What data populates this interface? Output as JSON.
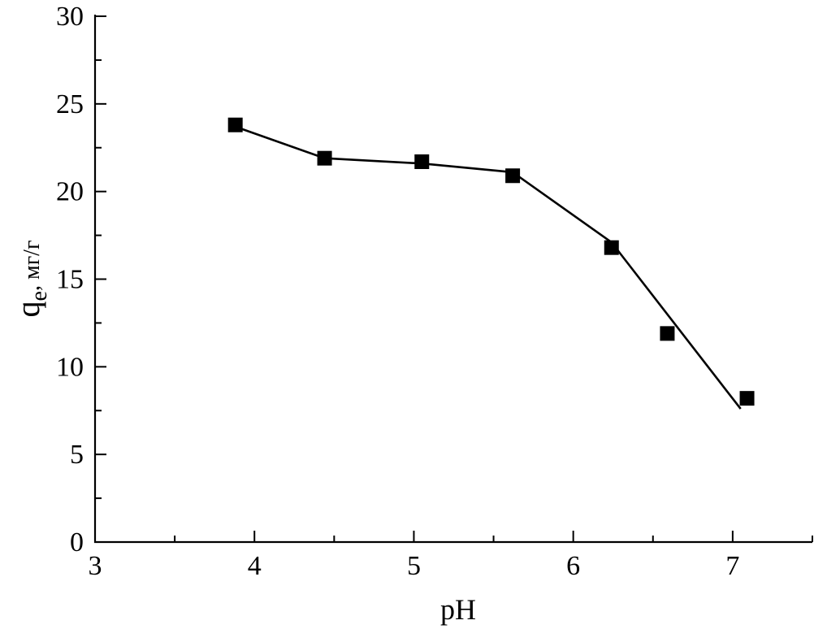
{
  "chart_data": {
    "type": "scatter",
    "xlabel": "pH",
    "ylabel": {
      "main": "q",
      "subscript": "e",
      "unit": ", мг/г"
    },
    "xlim": [
      3,
      7.5
    ],
    "ylim": [
      0,
      30
    ],
    "x_ticks": [
      3,
      4,
      5,
      6,
      7
    ],
    "y_ticks": [
      0,
      5,
      10,
      15,
      20,
      25,
      30
    ],
    "grid": false,
    "series": [
      {
        "marker": "square",
        "color": "#000000",
        "x": [
          3.88,
          4.44,
          5.05,
          5.62,
          6.24,
          6.59,
          7.09
        ],
        "y": [
          23.8,
          21.9,
          21.7,
          20.9,
          16.8,
          11.9,
          8.2
        ]
      }
    ],
    "fit_line": {
      "x": [
        3.88,
        4.44,
        5.05,
        5.62,
        6.24,
        7.05
      ],
      "y": [
        23.7,
        21.9,
        21.6,
        21.1,
        17.1,
        7.6
      ]
    }
  }
}
